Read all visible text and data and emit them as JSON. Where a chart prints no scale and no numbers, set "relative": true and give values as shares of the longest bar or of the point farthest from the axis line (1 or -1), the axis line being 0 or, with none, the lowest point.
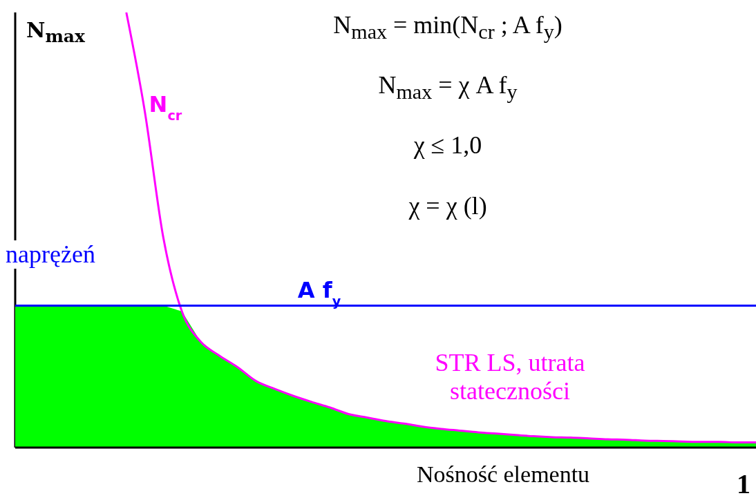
{
  "chart_data": {
    "type": "line",
    "relative": true,
    "ylabel": "N$_{max}$",
    "xlabel": "Nośność elementu",
    "categories": [
      null,
      null,
      null,
      null,
      null,
      null,
      null,
      null,
      null,
      null,
      null,
      null,
      null,
      null,
      null,
      null,
      null,
      null,
      null,
      null,
      null,
      null,
      null,
      null,
      null,
      null,
      null,
      null,
      null,
      null,
      null,
      null,
      null,
      null,
      null,
      null,
      null,
      null,
      null,
      null,
      null
    ],
    "series": [
      {
        "type": "area",
        "color": "#00ff00",
        "values": [
          0.326,
          0.326,
          0.326,
          0.326,
          0.326,
          0.326,
          0.326,
          0.326,
          0.326,
          0.313,
          0.244,
          0.212,
          0.185,
          0.153,
          0.135,
          0.119,
          0.105,
          0.092,
          0.077,
          0.069,
          0.061,
          0.055,
          0.048,
          0.043,
          0.039,
          0.035,
          0.032,
          0.029,
          0.026,
          0.024,
          0.023,
          0.021,
          0.019,
          0.018,
          0.016,
          0.015,
          0.014,
          0.013,
          0.013,
          0.012,
          0.012
        ]
      },
      {
        "name": "N$_{cr}$",
        "color": "#ff00ff",
        "values": [
          null,
          null,
          null,
          null,
          null,
          null,
          1.0,
          0.772,
          0.482,
          0.313,
          0.244,
          0.212,
          0.185,
          0.153,
          0.135,
          0.119,
          0.105,
          0.092,
          0.077,
          0.069,
          0.061,
          0.055,
          0.048,
          0.043,
          0.039,
          0.035,
          0.032,
          0.029,
          0.026,
          0.024,
          0.023,
          0.021,
          0.019,
          0.018,
          0.016,
          0.015,
          0.014,
          0.013,
          0.013,
          0.012,
          0.012
        ]
      },
      {
        "name": "A f$_{y}$",
        "color": "#0000ff",
        "values": [
          0.326,
          0.326,
          0.326,
          0.326,
          0.326,
          0.326,
          0.326,
          0.326,
          0.326,
          0.326,
          0.326,
          0.326,
          0.326,
          0.326,
          0.326,
          0.326,
          0.326,
          0.326,
          0.326,
          0.326,
          0.326,
          0.326,
          0.326,
          0.326,
          0.326,
          0.326,
          0.326,
          0.326,
          0.326,
          0.326,
          0.326,
          0.326,
          0.326,
          0.326,
          0.326,
          0.326,
          0.326,
          0.326,
          0.326,
          0.326,
          0.326
        ]
      }
    ],
    "annotations": [
      "N$_{max}$ = min(N$_{cr}$  ;  A f$_{y}$)",
      "N$_{max}$ = χ A f$_{y}$",
      "χ ≤ 1,0",
      "χ = χ (l)",
      "naprężeń",
      "STR LS, utrata stateczności",
      "1"
    ]
  }
}
